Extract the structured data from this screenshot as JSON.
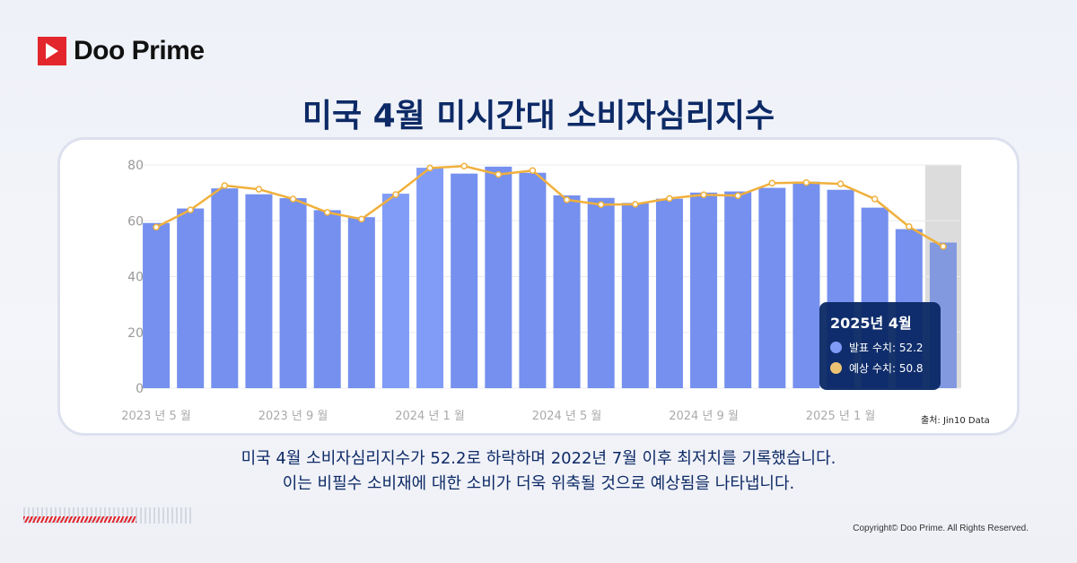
{
  "brand": "Doo Prime",
  "title": "미국 4월 미시간대 소비자심리지수",
  "description": [
    "미국 4월 소비자심리지수가 52.2로 하락하며 2022년 7월 이후 최저치를 기록했습니다.",
    "이는 비필수 소비재에 대한 소비가 더욱 위축될 것으로 예상됨을 나타냅니다."
  ],
  "source": "출처:  Jin10 Data",
  "copyright": "Copyright© Doo Prime. All Rights Reserved.",
  "tooltip": {
    "title": "2025년 4월",
    "actual": "발표 수치: 52.2",
    "forecast": "예상 수치: 50.8"
  },
  "colors": {
    "bar": "#7590ee",
    "bar_highlight": "#809cf7",
    "line": "#f0b03c",
    "title": "#0d2a66"
  },
  "chart_data": {
    "type": "bar+line",
    "categories": [
      "2023-05",
      "2023-06",
      "2023-07",
      "2023-08",
      "2023-09",
      "2023-10",
      "2023-11",
      "2023-12",
      "2024-01",
      "2024-02",
      "2024-03",
      "2024-04",
      "2024-05",
      "2024-06",
      "2024-07",
      "2024-08",
      "2024-09",
      "2024-10",
      "2024-11",
      "2024-12",
      "2025-01",
      "2025-02",
      "2025-03",
      "2025-04"
    ],
    "x_tick_labels": [
      "2023 년 5 월",
      "2023 년 9 월",
      "2024 년 1 월",
      "2024 년 5 월",
      "2024 년 9 월",
      "2025 년 1 월"
    ],
    "y_ticks": [
      0,
      20,
      40,
      60,
      80
    ],
    "ylim": [
      0,
      80
    ],
    "grid": true,
    "series": [
      {
        "name": "발표 수치",
        "type": "bar",
        "values": [
          59.2,
          64.4,
          71.6,
          69.5,
          68.1,
          63.8,
          61.3,
          69.7,
          79.0,
          76.9,
          79.4,
          77.2,
          69.1,
          68.2,
          66.4,
          67.9,
          70.1,
          70.5,
          71.8,
          74.0,
          71.1,
          64.7,
          57.0,
          52.2
        ]
      },
      {
        "name": "예상 수치",
        "type": "line",
        "values": [
          57.7,
          63.9,
          72.6,
          71.3,
          67.8,
          63.0,
          60.6,
          69.4,
          78.9,
          79.6,
          76.6,
          78.0,
          67.5,
          65.8,
          65.9,
          68.0,
          69.3,
          69.0,
          73.5,
          73.7,
          73.2,
          67.8,
          57.9,
          50.8
        ]
      }
    ]
  }
}
